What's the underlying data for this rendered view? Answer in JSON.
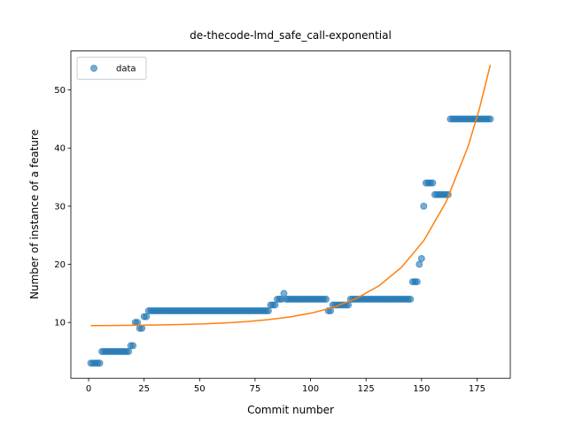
{
  "chart_data": {
    "type": "scatter",
    "title": "de-thecode-lmd_safe_call-exponential",
    "x_label": "Commit number",
    "y_label": "Number of instance of a feature",
    "xlim": [
      -8,
      190
    ],
    "ylim": [
      0.4,
      56.7
    ],
    "xticks": [
      0,
      25,
      50,
      75,
      100,
      125,
      150,
      175
    ],
    "yticks": [
      10,
      20,
      30,
      40,
      50
    ],
    "legend": "upper left",
    "series": [
      {
        "name": "data",
        "color": "#1f77b4",
        "x": [
          1,
          2,
          3,
          4,
          5,
          6,
          7,
          8,
          9,
          10,
          11,
          12,
          13,
          14,
          15,
          16,
          17,
          18,
          19,
          20,
          21,
          22,
          23,
          24,
          25,
          26,
          27,
          28,
          29,
          30,
          31,
          32,
          33,
          34,
          35,
          36,
          37,
          38,
          39,
          40,
          41,
          42,
          43,
          44,
          45,
          46,
          47,
          48,
          49,
          50,
          51,
          52,
          53,
          54,
          55,
          56,
          57,
          58,
          59,
          60,
          61,
          62,
          63,
          64,
          65,
          66,
          67,
          68,
          69,
          70,
          71,
          72,
          73,
          74,
          75,
          76,
          77,
          78,
          79,
          80,
          81,
          82,
          83,
          84,
          85,
          86,
          87,
          88,
          89,
          90,
          91,
          92,
          93,
          94,
          95,
          96,
          97,
          98,
          99,
          100,
          101,
          102,
          103,
          104,
          105,
          106,
          107,
          108,
          109,
          110,
          111,
          112,
          113,
          114,
          115,
          116,
          117,
          118,
          119,
          120,
          121,
          122,
          123,
          124,
          125,
          126,
          127,
          128,
          129,
          130,
          131,
          132,
          133,
          134,
          135,
          136,
          137,
          138,
          139,
          140,
          141,
          142,
          143,
          144,
          145,
          146,
          147,
          148,
          149,
          150,
          151,
          152,
          153,
          154,
          155,
          156,
          157,
          158,
          159,
          160,
          161,
          162,
          163,
          164,
          165,
          166,
          167,
          168,
          169,
          170,
          171,
          172,
          173,
          174,
          175,
          176,
          177,
          178,
          179,
          180,
          181
        ],
        "values": [
          3,
          3,
          3,
          3,
          3,
          5,
          5,
          5,
          5,
          5,
          5,
          5,
          5,
          5,
          5,
          5,
          5,
          5,
          6,
          6,
          10,
          10,
          9,
          9,
          11,
          11,
          12,
          12,
          12,
          12,
          12,
          12,
          12,
          12,
          12,
          12,
          12,
          12,
          12,
          12,
          12,
          12,
          12,
          12,
          12,
          12,
          12,
          12,
          12,
          12,
          12,
          12,
          12,
          12,
          12,
          12,
          12,
          12,
          12,
          12,
          12,
          12,
          12,
          12,
          12,
          12,
          12,
          12,
          12,
          12,
          12,
          12,
          12,
          12,
          12,
          12,
          12,
          12,
          12,
          12,
          12,
          13,
          13,
          13,
          14,
          14,
          14,
          15,
          14,
          14,
          14,
          14,
          14,
          14,
          14,
          14,
          14,
          14,
          14,
          14,
          14,
          14,
          14,
          14,
          14,
          14,
          14,
          12,
          12,
          13,
          13,
          13,
          13,
          13,
          13,
          13,
          13,
          14,
          14,
          14,
          14,
          14,
          14,
          14,
          14,
          14,
          14,
          14,
          14,
          14,
          14,
          14,
          14,
          14,
          14,
          14,
          14,
          14,
          14,
          14,
          14,
          14,
          14,
          14,
          14,
          17,
          17,
          17,
          20,
          21,
          30,
          34,
          34,
          34,
          34,
          32,
          32,
          32,
          32,
          32,
          32,
          32,
          45,
          45,
          45,
          45,
          45,
          45,
          45,
          45,
          45,
          45,
          45,
          45,
          45,
          45,
          45,
          45,
          45,
          45,
          45
        ]
      }
    ],
    "fit_line": {
      "color": "#ff7f0e",
      "x": [
        1,
        11,
        21,
        31,
        41,
        51,
        61,
        71,
        81,
        91,
        101,
        111,
        121,
        131,
        141,
        151,
        161,
        171,
        176,
        181
      ],
      "values": [
        9.45,
        9.48,
        9.51,
        9.57,
        9.64,
        9.75,
        9.91,
        10.14,
        10.48,
        10.96,
        11.67,
        12.7,
        14.19,
        16.35,
        19.5,
        24.06,
        30.68,
        40.3,
        46.66,
        54.3
      ]
    }
  }
}
